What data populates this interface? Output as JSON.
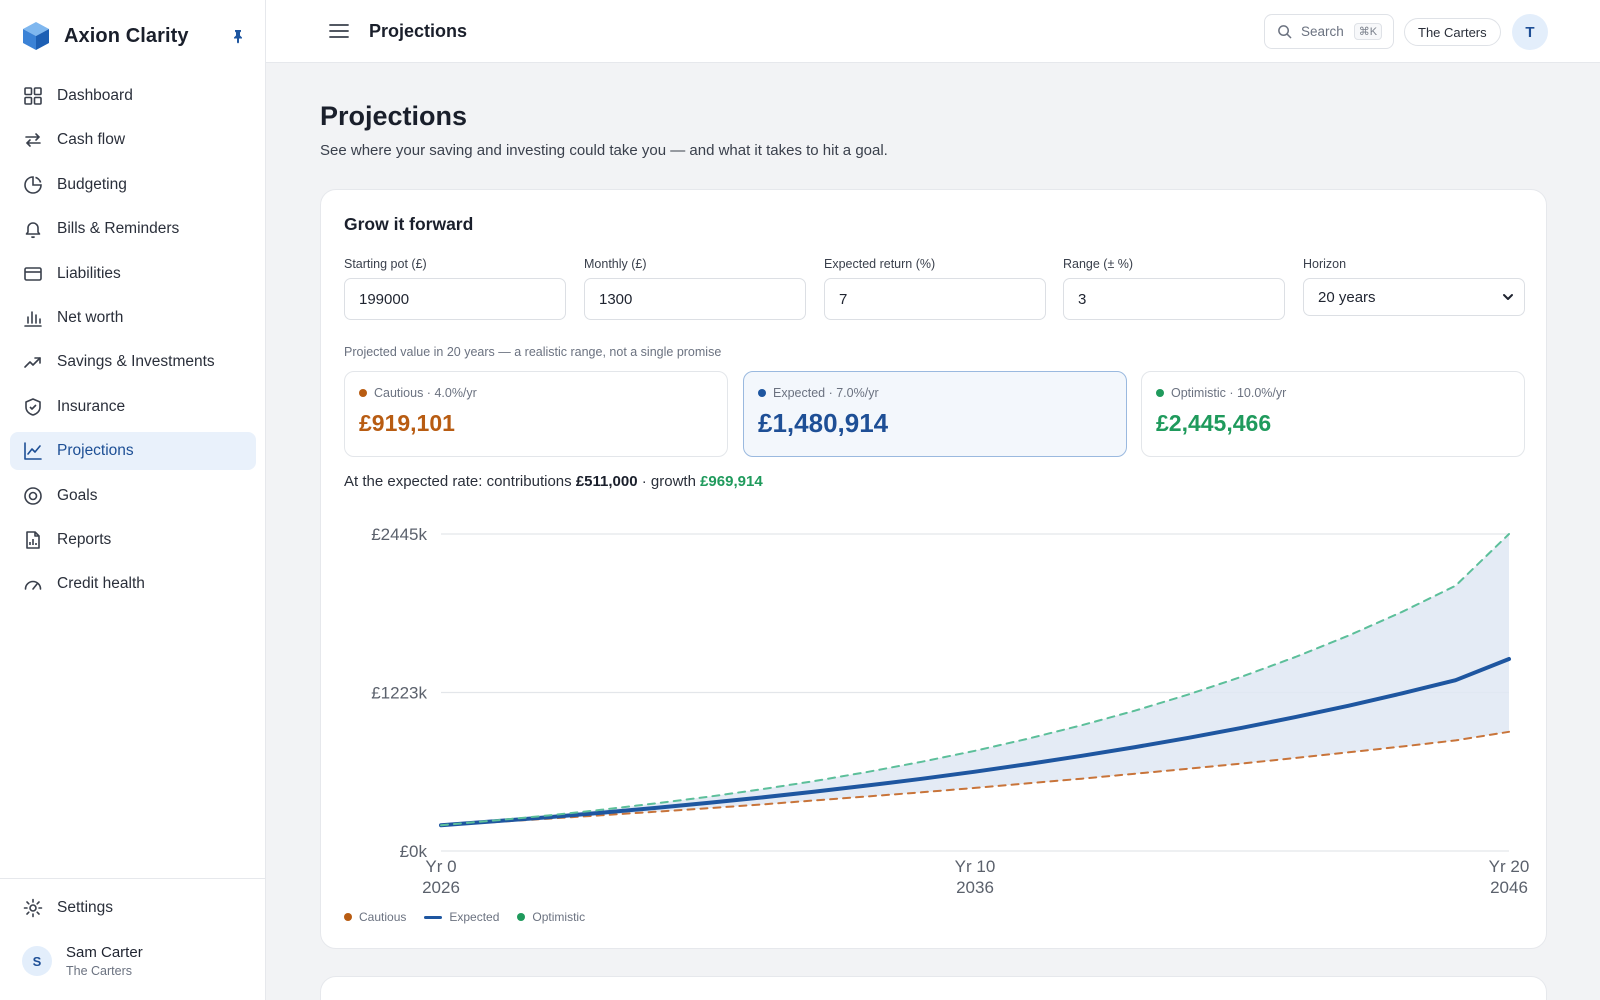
{
  "app": {
    "name": "Axion Clarity"
  },
  "sidebar": {
    "items": [
      {
        "label": "Dashboard",
        "icon": "dashboard-icon"
      },
      {
        "label": "Cash flow",
        "icon": "arrows-exchange-icon"
      },
      {
        "label": "Budgeting",
        "icon": "pie-icon"
      },
      {
        "label": "Bills & Reminders",
        "icon": "bell-icon"
      },
      {
        "label": "Liabilities",
        "icon": "card-icon"
      },
      {
        "label": "Net worth",
        "icon": "bar-chart-icon"
      },
      {
        "label": "Savings & Investments",
        "icon": "trend-up-icon"
      },
      {
        "label": "Insurance",
        "icon": "shield-icon"
      },
      {
        "label": "Projections",
        "icon": "line-chart-icon",
        "active": true
      },
      {
        "label": "Goals",
        "icon": "target-icon"
      },
      {
        "label": "Reports",
        "icon": "report-icon"
      },
      {
        "label": "Credit health",
        "icon": "gauge-icon"
      }
    ],
    "settings_label": "Settings",
    "user": {
      "initial": "S",
      "name": "Sam Carter",
      "household": "The Carters"
    }
  },
  "topbar": {
    "title": "Projections",
    "search_label": "Search",
    "search_shortcut": "⌘K",
    "household": "The Carters",
    "avatar_initial": "T"
  },
  "page": {
    "title": "Projections",
    "subtitle": "See where your saving and investing could take you — and what it takes to hit a goal."
  },
  "grow": {
    "title": "Grow it forward",
    "fields": {
      "starting_pot": {
        "label": "Starting pot (£)",
        "value": "199000"
      },
      "monthly": {
        "label": "Monthly (£)",
        "value": "1300"
      },
      "expected_return": {
        "label": "Expected return (%)",
        "value": "7"
      },
      "range": {
        "label": "Range (± %)",
        "value": "3"
      },
      "horizon": {
        "label": "Horizon",
        "value": "20 years"
      }
    },
    "range_note": "Projected value in 20 years — a realistic range, not a single promise",
    "scenarios": {
      "cautious": {
        "label": "Cautious · 4.0%/yr",
        "value": "£919,101",
        "color": "#b85c12"
      },
      "expected": {
        "label": "Expected · 7.0%/yr",
        "value": "£1,480,914",
        "color": "#1e4f96"
      },
      "optimistic": {
        "label": "Optimistic · 10.0%/yr",
        "value": "£2,445,466",
        "color": "#1f9a5c"
      }
    },
    "summary": {
      "prefix": "At the expected rate: contributions",
      "contributions": "£511,000",
      "middle": "· growth",
      "growth": "£969,914"
    }
  },
  "chart_data": {
    "type": "line",
    "x": [
      0,
      1,
      2,
      3,
      4,
      5,
      6,
      7,
      8,
      9,
      10,
      11,
      12,
      13,
      14,
      15,
      16,
      17,
      18,
      19,
      20
    ],
    "ylim": [
      0,
      2445
    ],
    "yticks": [
      "£0k",
      "£1223k",
      "£2445k"
    ],
    "xticks": [
      {
        "x": 0,
        "label": "Yr 0",
        "year": "2026"
      },
      {
        "x": 10,
        "label": "Yr 10",
        "year": "2036"
      },
      {
        "x": 20,
        "label": "Yr 20",
        "year": "2046"
      }
    ],
    "series": [
      {
        "name": "Cautious",
        "color": "#c8743a",
        "dashed": true,
        "values": [
          199,
          223,
          249,
          275,
          302,
          330,
          359,
          390,
          421,
          453,
          487,
          522,
          558,
          596,
          635,
          675,
          717,
          761,
          806,
          853,
          919
        ]
      },
      {
        "name": "Expected",
        "color": "#1e56a0",
        "dashed": false,
        "values": [
          199,
          229,
          261,
          295,
          332,
          371,
          413,
          458,
          506,
          557,
          612,
          671,
          734,
          801,
          873,
          950,
          1033,
          1121,
          1216,
          1317,
          1481
        ]
      },
      {
        "name": "Optimistic",
        "color": "#5cbf9a",
        "dashed": true,
        "values": [
          199,
          235,
          274,
          318,
          366,
          418,
          476,
          540,
          611,
          688,
          773,
          867,
          970,
          1083,
          1208,
          1345,
          1496,
          1662,
          1845,
          2046,
          2445
        ]
      }
    ],
    "band_color": "#dfe7f3",
    "grid": true,
    "legend": "bottom-left"
  }
}
